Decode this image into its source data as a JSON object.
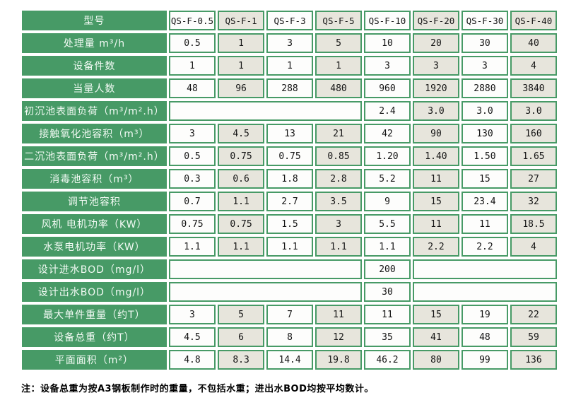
{
  "colors": {
    "green": "#479a66",
    "tan": "#e7e5dc",
    "cellwhite": "#fdfdfc",
    "text": "#141414"
  },
  "table": {
    "corner_label": "型号",
    "models": [
      "QS-F-0.5",
      "QS-F-1",
      "QS-F-3",
      "QS-F-5",
      "QS-F-10",
      "QS-F-20",
      "QS-F-30",
      "QS-F-40"
    ],
    "rows": [
      {
        "label": "处理量 m³/h",
        "cells": [
          "0.5",
          "1",
          "3",
          "5",
          "10",
          "20",
          "30",
          "40"
        ]
      },
      {
        "label": "设备件数",
        "cells": [
          "1",
          "1",
          "1",
          "1",
          "3",
          "3",
          "3",
          "4"
        ]
      },
      {
        "label": "当量人数",
        "cells": [
          "48",
          "96",
          "288",
          "480",
          "960",
          "1920",
          "2880",
          "3840"
        ]
      },
      {
        "label": "初沉池表面负荷（m³/m².h）",
        "cells": [
          {
            "v": "",
            "span": 4
          },
          "2.4",
          "3.0",
          "3.0",
          "3.0"
        ]
      },
      {
        "label": "接触氧化池容积（m³）",
        "cells": [
          "3",
          "4.5",
          "13",
          "21",
          "42",
          "90",
          "130",
          "160"
        ]
      },
      {
        "label": "二沉池表面负荷（m³/m².h）",
        "cells": [
          "0.5",
          "0.75",
          "0.75",
          "0.85",
          "1.20",
          "1.40",
          "1.50",
          "1.65"
        ]
      },
      {
        "label": "消毒池容积（m³）",
        "cells": [
          "0.3",
          "0.6",
          "1.8",
          "2.8",
          "5.2",
          "11",
          "15",
          "27"
        ]
      },
      {
        "label": "调节池容积",
        "cells": [
          "0.7",
          "1.1",
          "2.7",
          "3.5",
          "9",
          "15",
          "23.4",
          "32"
        ]
      },
      {
        "label": "风机 电机功率（KW）",
        "cells": [
          "0.75",
          "0.75",
          "1.5",
          "3",
          "5.5",
          "11",
          "11",
          "18.5"
        ]
      },
      {
        "label": "水泵电机功率（KW）",
        "cells": [
          "1.1",
          "1.1",
          "1.1",
          "1.1",
          "1.1",
          "2.2",
          "2.2",
          "4"
        ]
      },
      {
        "label": "设计进水BOD（mg/l）",
        "cells": [
          {
            "v": "",
            "span": 4
          },
          "200",
          {
            "v": "",
            "span": 3
          }
        ]
      },
      {
        "label": "设计出水BOD（mg/l）",
        "cells": [
          {
            "v": "",
            "span": 4
          },
          "30",
          {
            "v": "",
            "span": 3
          }
        ]
      },
      {
        "label": "最大单件重量（约T）",
        "cells": [
          "3",
          "5",
          "7",
          "11",
          "11",
          "15",
          "19",
          "22"
        ]
      },
      {
        "label": "设备总重（约T）",
        "cells": [
          "4.5",
          "6",
          "8",
          "12",
          "35",
          "41",
          "48",
          "59"
        ]
      },
      {
        "label": "平面面积（m²）",
        "cells": [
          "4.8",
          "8.3",
          "14.4",
          "19.8",
          "46.2",
          "80",
          "99",
          "136"
        ]
      }
    ]
  },
  "note": "注：设备总重为按A3钢板制作时的重量，不包括水重；进出水BOD均按平均数计。"
}
